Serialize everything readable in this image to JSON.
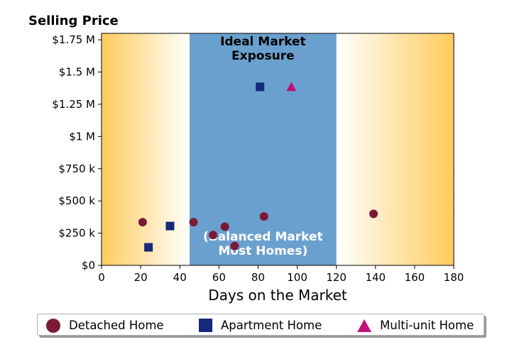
{
  "chart_data": {
    "type": "scatter",
    "title": "",
    "ylabel": "Selling Price",
    "xlabel": "Days on the Market",
    "xlim": [
      0,
      180
    ],
    "ylim": [
      0,
      1800000
    ],
    "x_ticks": [
      0,
      20,
      40,
      60,
      80,
      100,
      120,
      140,
      160,
      180
    ],
    "x_tick_labels": [
      "0",
      "20",
      "40",
      "60",
      "80",
      "100",
      "120",
      "140",
      "160",
      "180"
    ],
    "y_ticks": [
      0,
      250000,
      500000,
      750000,
      1000000,
      1250000,
      1500000,
      1750000
    ],
    "y_tick_labels": [
      "$0",
      "$250 k",
      "$500 k",
      "$750 k",
      "$1 M",
      "$1.25 M",
      "$1.5 M",
      "$1.75 M"
    ],
    "grid": false,
    "ideal_band": {
      "x_range": [
        45,
        120
      ],
      "color": "#6aa0cd",
      "label": "Ideal Market Exposure",
      "sublabel": "(Balanced Market Most Homes)"
    },
    "background_gradient_color": "#ffcc5c",
    "series": [
      {
        "name": "Detached Home",
        "marker": "circle",
        "color": "#7b1a37",
        "points": [
          {
            "x": 21,
            "y": 335000
          },
          {
            "x": 47,
            "y": 335000
          },
          {
            "x": 57,
            "y": 235000
          },
          {
            "x": 63,
            "y": 300000
          },
          {
            "x": 68,
            "y": 150000
          },
          {
            "x": 83,
            "y": 380000
          },
          {
            "x": 139,
            "y": 400000
          }
        ]
      },
      {
        "name": "Apartment Home",
        "marker": "square",
        "color": "#16287a",
        "points": [
          {
            "x": 24,
            "y": 140000
          },
          {
            "x": 35,
            "y": 305000
          },
          {
            "x": 81,
            "y": 1385000
          }
        ]
      },
      {
        "name": "Multi-unit Home",
        "marker": "triangle",
        "color": "#c2107a",
        "points": [
          {
            "x": 97,
            "y": 1385000
          }
        ]
      }
    ],
    "legend_position": "bottom"
  }
}
